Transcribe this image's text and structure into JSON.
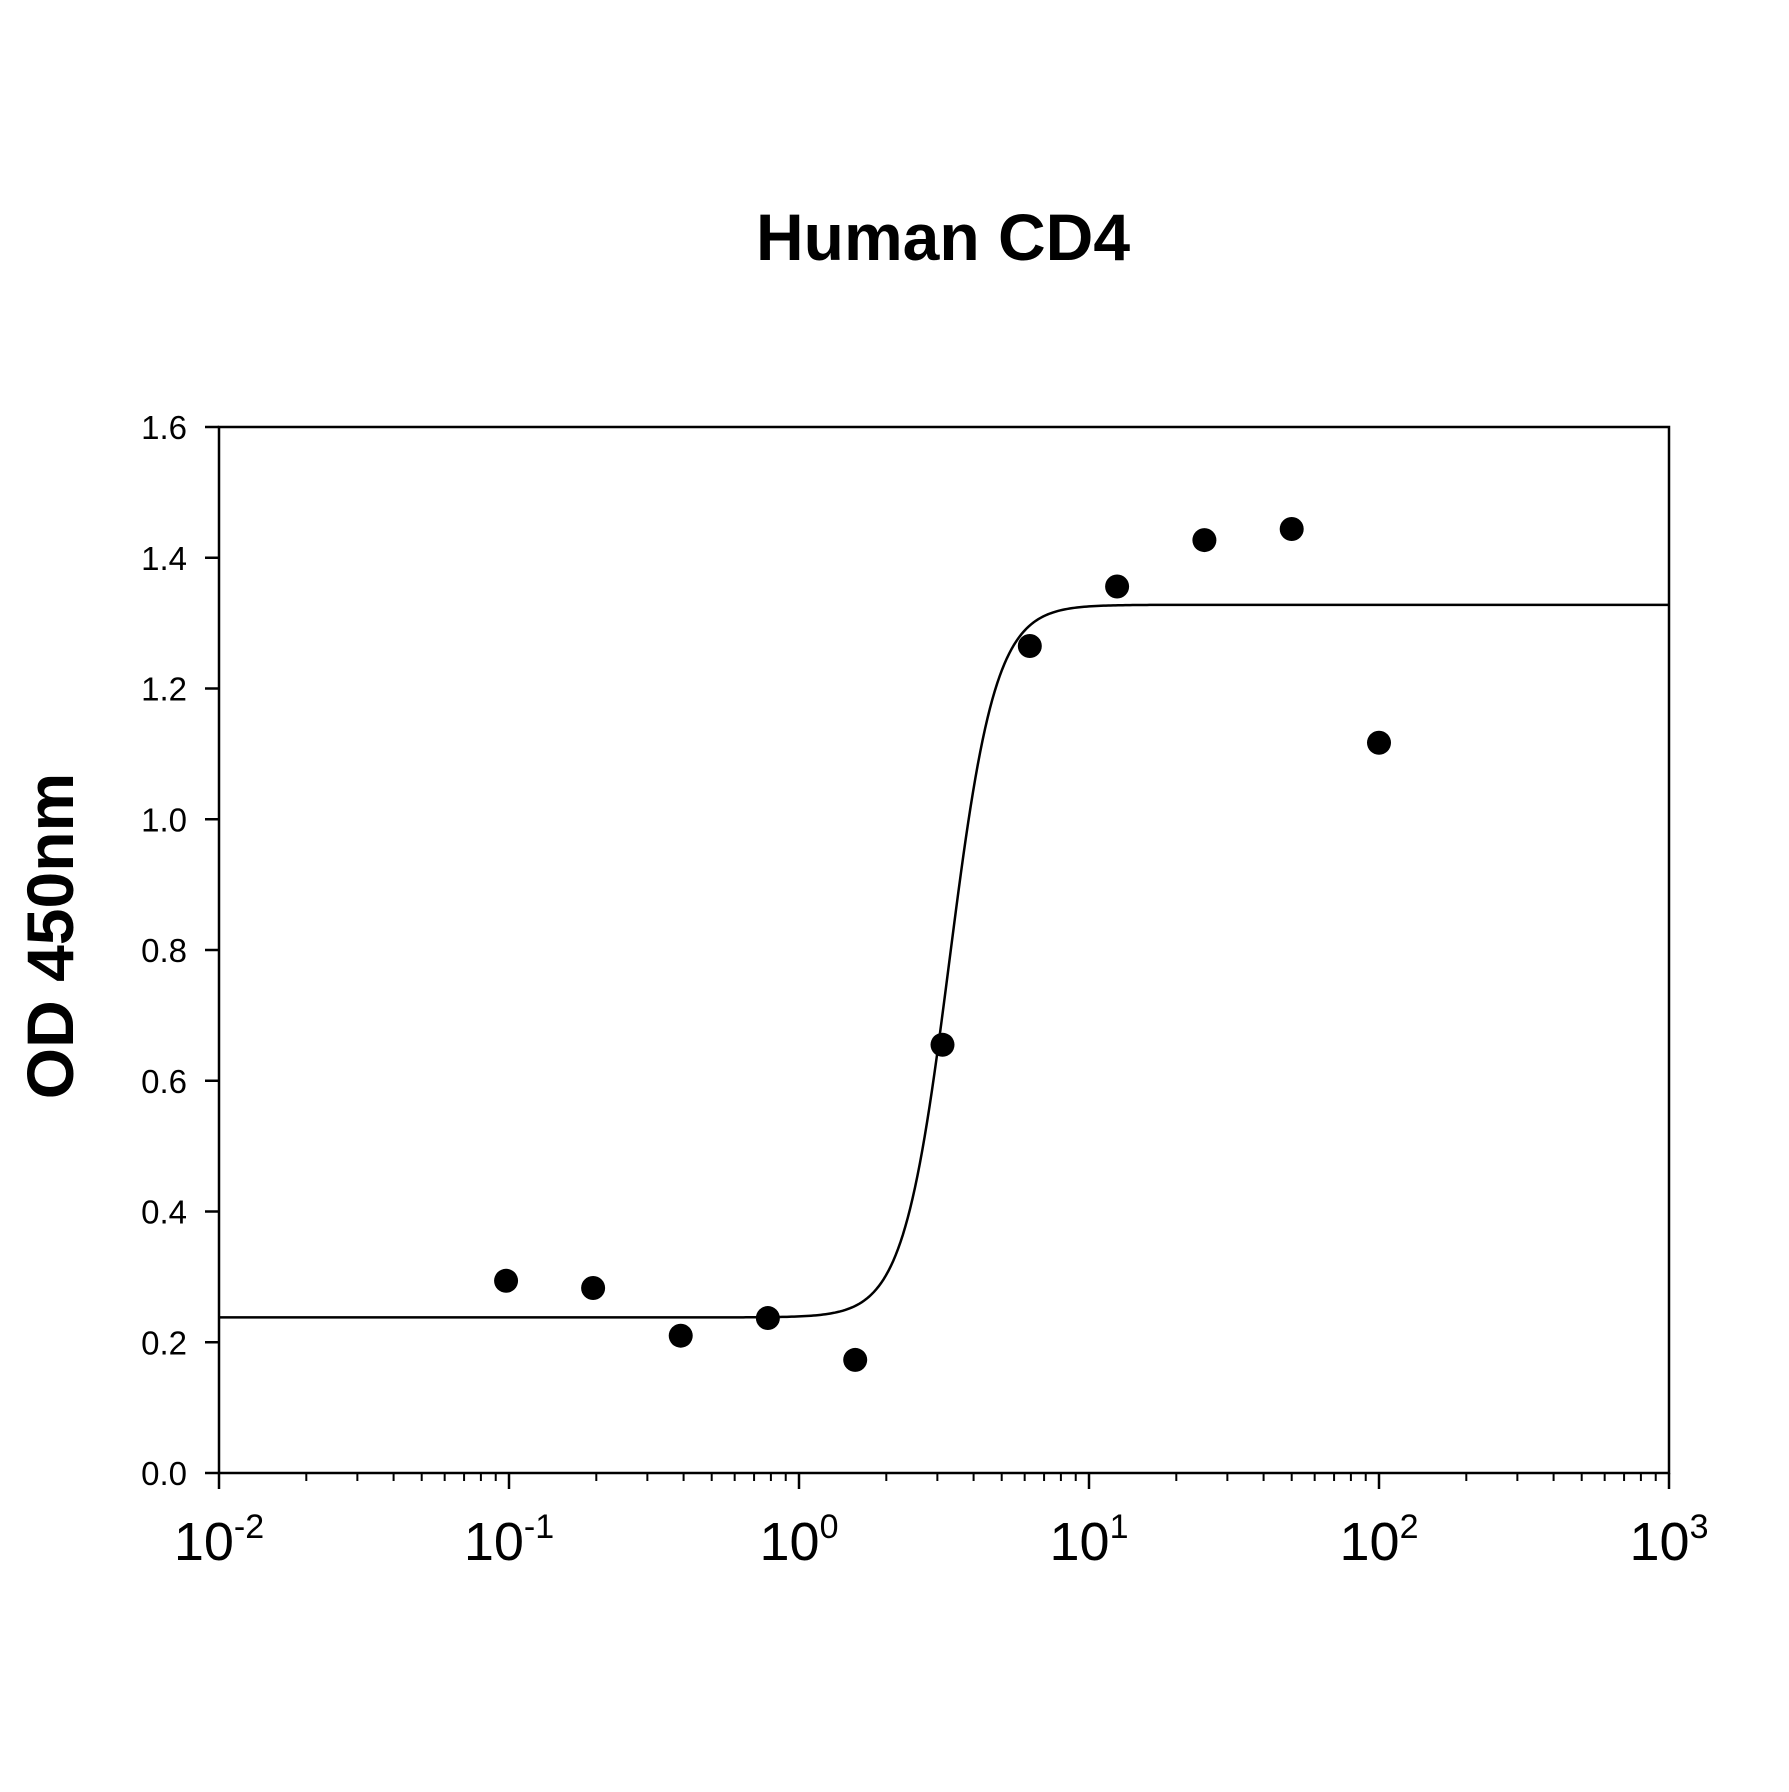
{
  "chart_data": {
    "type": "scatter",
    "title": "Human CD4",
    "xlabel": "",
    "ylabel": "OD 450nm",
    "x_scale": "log",
    "xlim": [
      0.01,
      1000
    ],
    "ylim": [
      0,
      1.6
    ],
    "grid": false,
    "legend": "none",
    "x_ticks": [
      {
        "base": "10",
        "exp": "-2",
        "value": 0.01
      },
      {
        "base": "10",
        "exp": "-1",
        "value": 0.1
      },
      {
        "base": "10",
        "exp": "0",
        "value": 1
      },
      {
        "base": "10",
        "exp": "1",
        "value": 10
      },
      {
        "base": "10",
        "exp": "2",
        "value": 100
      },
      {
        "base": "10",
        "exp": "3",
        "value": 1000
      }
    ],
    "y_ticks": [
      {
        "label": "0.0",
        "value": 0.0
      },
      {
        "label": "0.2",
        "value": 0.2
      },
      {
        "label": "0.4",
        "value": 0.4
      },
      {
        "label": "0.6",
        "value": 0.6
      },
      {
        "label": "0.8",
        "value": 0.8
      },
      {
        "label": "1.0",
        "value": 1.0
      },
      {
        "label": "1.2",
        "value": 1.2
      },
      {
        "label": "1.4",
        "value": 1.4
      },
      {
        "label": "1.6",
        "value": 1.6
      }
    ],
    "points": {
      "x": [
        0.0977,
        0.195,
        0.391,
        0.781,
        1.5625,
        3.125,
        6.25,
        12.5,
        25,
        50,
        100
      ],
      "y": [
        0.294,
        0.283,
        0.21,
        0.237,
        0.173,
        0.655,
        1.265,
        1.356,
        1.427,
        1.444,
        1.117
      ]
    },
    "fit_curve": {
      "model": "4PL sigmoid",
      "bottom": 0.238,
      "top": 1.328,
      "ec50": 3.3,
      "hill": 5.5
    },
    "colors": {
      "points": "#000000",
      "curve": "#000000",
      "axes": "#000000"
    }
  }
}
